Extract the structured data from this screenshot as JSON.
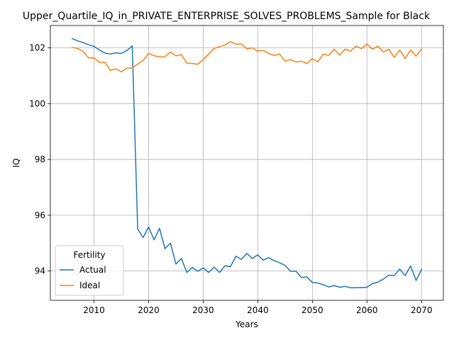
{
  "chart_data": {
    "type": "line",
    "title": "Upper_Quartile_IQ_in_PRIVATE_ENTERPRISE_SOLVES_PROBLEMS_Sample for Black",
    "xlabel": "Years",
    "ylabel": "IQ",
    "xlim": [
      2002,
      2074
    ],
    "ylim": [
      92.95,
      102.8
    ],
    "xticks": [
      2010,
      2020,
      2030,
      2040,
      2050,
      2060,
      2070
    ],
    "yticks": [
      94,
      96,
      98,
      100,
      102
    ],
    "grid": true,
    "legend": {
      "title": "Fertility",
      "placement": "lower-left"
    },
    "x": [
      2006,
      2007,
      2008,
      2009,
      2010,
      2011,
      2012,
      2013,
      2014,
      2015,
      2016,
      2017,
      2018,
      2019,
      2020,
      2021,
      2022,
      2023,
      2024,
      2025,
      2026,
      2027,
      2028,
      2029,
      2030,
      2031,
      2032,
      2033,
      2034,
      2035,
      2036,
      2037,
      2038,
      2039,
      2040,
      2041,
      2042,
      2043,
      2044,
      2045,
      2046,
      2047,
      2048,
      2049,
      2050,
      2051,
      2052,
      2053,
      2054,
      2055,
      2056,
      2057,
      2058,
      2059,
      2060,
      2061,
      2062,
      2063,
      2064,
      2065,
      2066,
      2067,
      2068,
      2069,
      2070
    ],
    "series": [
      {
        "name": "Actual",
        "color": "#1f77b4",
        "values": [
          102.33,
          102.25,
          102.19,
          102.11,
          102.05,
          101.92,
          101.81,
          101.78,
          101.82,
          101.8,
          101.9,
          102.07,
          95.5,
          95.2,
          95.58,
          95.12,
          95.53,
          94.8,
          95.0,
          94.25,
          94.45,
          93.95,
          94.13,
          93.99,
          94.11,
          93.95,
          94.14,
          93.95,
          94.19,
          94.16,
          94.53,
          94.42,
          94.63,
          94.45,
          94.58,
          94.39,
          94.48,
          94.37,
          94.3,
          94.2,
          93.99,
          93.99,
          93.77,
          93.79,
          93.59,
          93.57,
          93.51,
          93.43,
          93.48,
          93.42,
          93.45,
          93.4,
          93.4,
          93.41,
          93.42,
          93.55,
          93.6,
          93.71,
          93.85,
          93.84,
          94.07,
          93.84,
          94.18,
          93.66,
          94.06
        ]
      },
      {
        "name": "Ideal",
        "color": "#ff7f0e",
        "values": [
          102.01,
          101.98,
          101.87,
          101.64,
          101.64,
          101.48,
          101.48,
          101.19,
          101.25,
          101.14,
          101.28,
          101.28,
          101.42,
          101.55,
          101.8,
          101.72,
          101.67,
          101.68,
          101.85,
          101.71,
          101.76,
          101.45,
          101.44,
          101.41,
          101.58,
          101.78,
          101.98,
          102.04,
          102.1,
          102.22,
          102.13,
          102.14,
          101.96,
          102.0,
          101.88,
          101.91,
          101.8,
          101.73,
          101.78,
          101.52,
          101.58,
          101.49,
          101.52,
          101.44,
          101.61,
          101.5,
          101.78,
          101.73,
          101.95,
          101.74,
          101.95,
          101.88,
          102.06,
          101.97,
          102.14,
          101.95,
          102.06,
          101.85,
          101.95,
          101.66,
          101.92,
          101.62,
          101.92,
          101.7,
          101.95
        ]
      }
    ]
  }
}
